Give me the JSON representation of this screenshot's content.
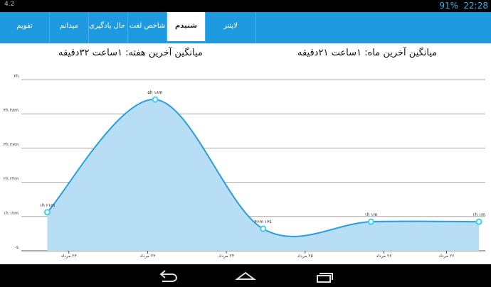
{
  "status_bar": {
    "left": "4.2",
    "battery": "91%",
    "time": "22:28"
  },
  "tabs": [
    "تقویم",
    "میدانم",
    "در حال یادگیری",
    "شاخص لغت",
    "شنیدم",
    "لایتنر"
  ],
  "header": {
    "week_average": "میانگین آخرین هفته: ۱ساعت ۳۲دقیقه",
    "month_average": "میانگین آخرین ماه: ۱ساعت ۲۱دقیقه"
  },
  "chart_data": {
    "type": "area",
    "x": [
      0,
      1,
      2,
      3,
      4
    ],
    "values": [
      81,
      318,
      46.22,
      61,
      61
    ],
    "value_labels": [
      "۱h ۲۱m",
      "۵h ۱۸m",
      "۴۶m ۱۳s",
      "۱h ۱m",
      "۱h ۱m"
    ],
    "color": "#2a9ee0",
    "fill": "#b7def5",
    "xlim": [
      -0.24,
      4
    ],
    "xticks": [
      {
        "value": 0.2,
        "label": "۲۳ مرداد"
      },
      {
        "value": 0.93,
        "label": "۲۳ مرداد"
      },
      {
        "value": 1.66,
        "label": "۲۴ مرداد"
      },
      {
        "value": 2.39,
        "label": "۲۵ مرداد"
      },
      {
        "value": 3.12,
        "label": "۲۶ مرداد"
      },
      {
        "value": 3.7,
        "label": "۲۶ مرداد"
      }
    ],
    "ylim": [
      0,
      360
    ],
    "yticks": [
      {
        "value": 0,
        "label": "۰s"
      },
      {
        "value": 72,
        "label": "۱h ۱۲m"
      },
      {
        "value": 144,
        "label": "۲h ۲۴m"
      },
      {
        "value": 216,
        "label": "۳h ۳۶m"
      },
      {
        "value": 288,
        "label": "۴h ۴۸m"
      },
      {
        "value": 360,
        "label": "۶h"
      }
    ],
    "grid": true
  }
}
